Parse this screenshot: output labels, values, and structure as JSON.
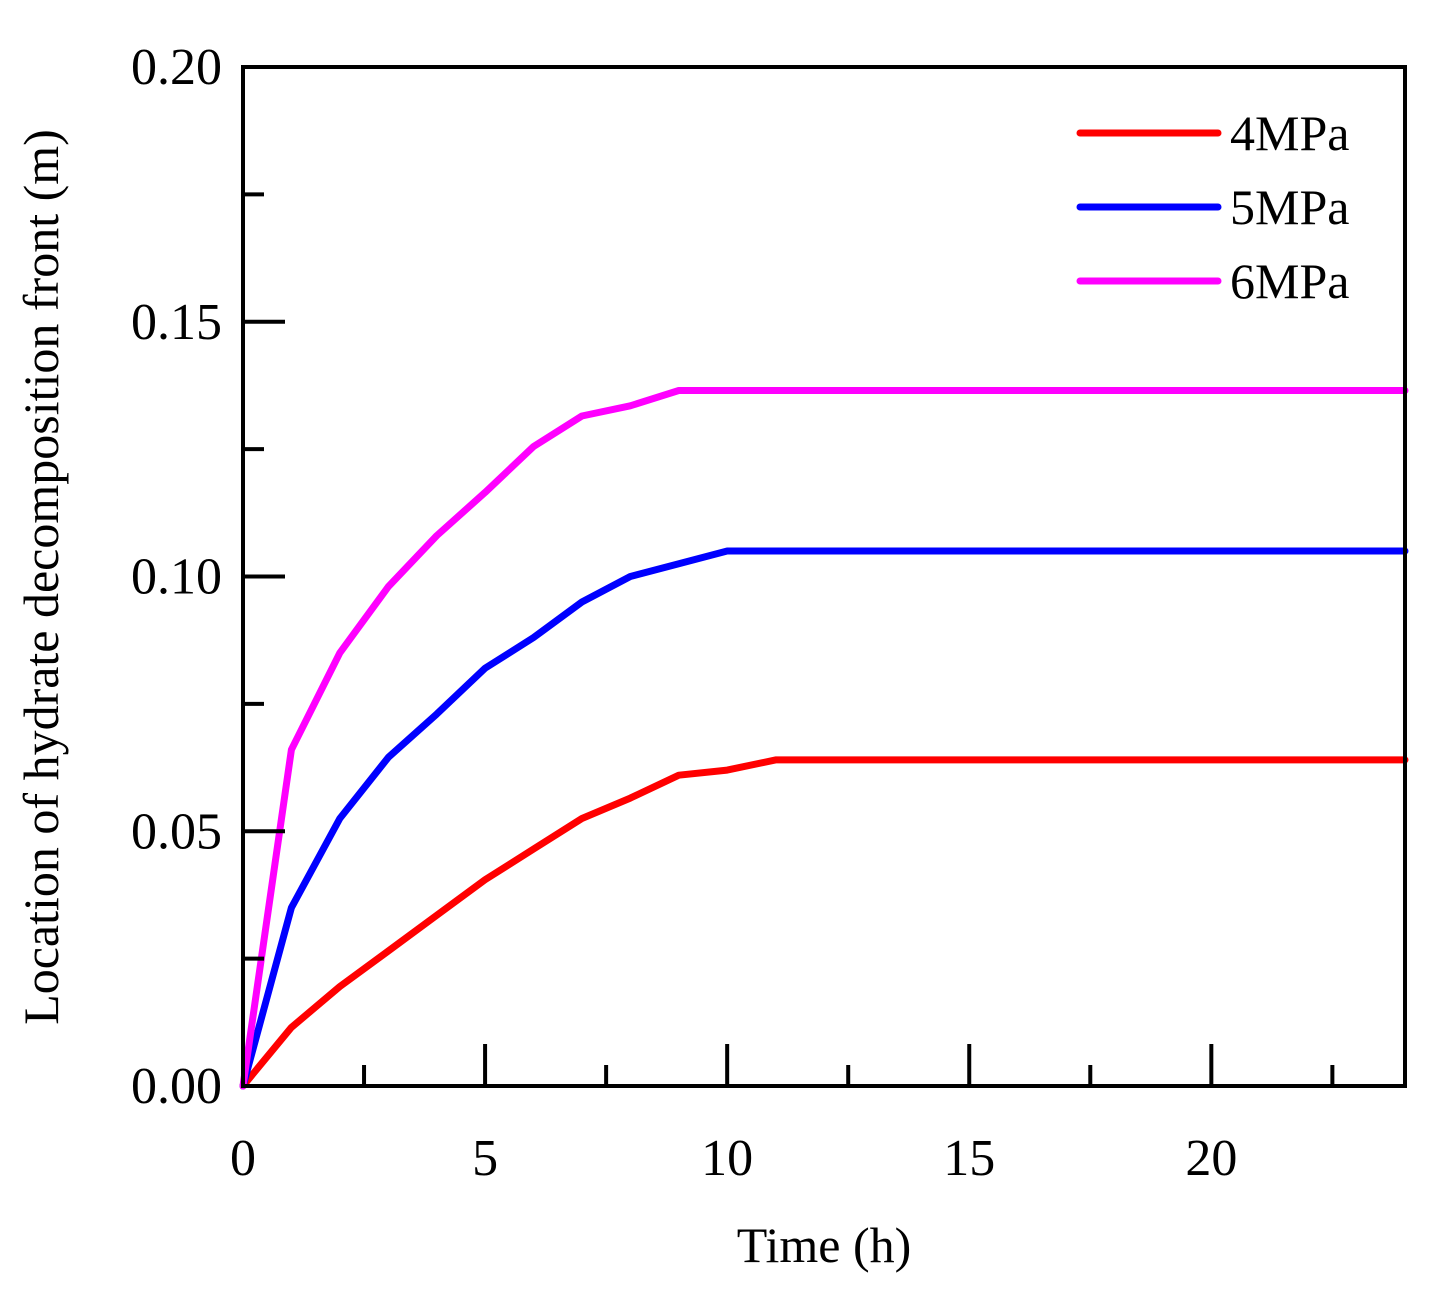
{
  "chart_data": {
    "type": "line",
    "title": "",
    "xlabel": "Time (h)",
    "ylabel": "Location of hydrate decomposition front (m)",
    "xlim": [
      0,
      24
    ],
    "ylim": [
      0,
      0.2
    ],
    "x_ticks": [
      0,
      5,
      10,
      15,
      20
    ],
    "x_tick_labels": [
      "0",
      "5",
      "10",
      "15",
      "20"
    ],
    "x_minor_ticks": [
      2.5,
      7.5,
      12.5,
      17.5,
      22.5
    ],
    "y_ticks": [
      0,
      0.05,
      0.1,
      0.15,
      0.2
    ],
    "y_tick_labels": [
      "0.00",
      "0.05",
      "0.10",
      "0.15",
      "0.20"
    ],
    "y_minor_ticks": [
      0.025,
      0.075,
      0.125,
      0.175
    ],
    "grid": false,
    "legend_position": "top-right",
    "series": [
      {
        "name": "4MPa",
        "color": "#ff0000",
        "x": [
          0,
          1,
          2,
          3,
          4,
          5,
          6,
          7,
          8,
          9,
          10,
          11,
          24
        ],
        "y": [
          0,
          0.0115,
          0.0195,
          0.0265,
          0.0335,
          0.0405,
          0.0465,
          0.0525,
          0.0565,
          0.061,
          0.062,
          0.064,
          0.064
        ]
      },
      {
        "name": "5MPa",
        "color": "#0000ff",
        "x": [
          0,
          1,
          2,
          3,
          4,
          5,
          6,
          7,
          8,
          9,
          10,
          24
        ],
        "y": [
          0,
          0.035,
          0.0525,
          0.0645,
          0.073,
          0.082,
          0.088,
          0.095,
          0.1,
          0.1025,
          0.105,
          0.105
        ]
      },
      {
        "name": "6MPa",
        "color": "#ff00ff",
        "x": [
          0,
          1,
          2,
          3,
          4,
          5,
          6,
          7,
          8,
          9,
          24
        ],
        "y": [
          0,
          0.066,
          0.085,
          0.098,
          0.108,
          0.1165,
          0.1255,
          0.1315,
          0.1335,
          0.1365,
          0.1365
        ]
      }
    ]
  }
}
